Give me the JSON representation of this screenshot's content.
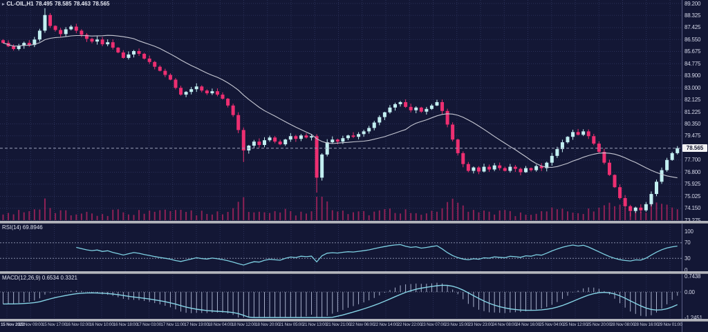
{
  "window": {
    "symbol": "CL-OIL,H1",
    "ohlc": {
      "open": "78.495",
      "high": "78.585",
      "low": "78.463",
      "close": "78.565"
    }
  },
  "indicators": {
    "rsi": {
      "label": "RSI(14)",
      "value": "69.8946"
    },
    "macd": {
      "label": "MACD(12,26,9)",
      "main_value": "0.6534",
      "signal_value": "0.3321"
    }
  },
  "colors": {
    "background": "#131735",
    "grid": "#2b3059",
    "bull": "#c2eff1",
    "bear": "#ed2f71",
    "ma_line": "#c7c9d4",
    "volume": "#8e2156",
    "rsi_line": "#7fd2e4",
    "rsi_levels": "#878da9",
    "macd_histogram": "#a9b1cc",
    "macd_signal": "#86d4e6",
    "separator": "#b3b5bd",
    "axis_text": "#d6d9ea",
    "current_line": "#9ba1bb",
    "current_price_bg": "#f2f2f4",
    "current_price_text": "#10132c"
  },
  "chart_data": {
    "type": "candlestick",
    "symbol": "CL-OIL",
    "timeframe": "H1",
    "title": "CL-OIL,H1 78.495 78.585 78.463 78.565",
    "price_ticks": [
      "89.200",
      "88.325",
      "87.425",
      "86.550",
      "85.675",
      "84.775",
      "83.900",
      "83.000",
      "82.125",
      "81.225",
      "80.350",
      "79.475",
      "77.700",
      "76.800",
      "75.925",
      "75.025",
      "74.150",
      "73.275"
    ],
    "price_range": [
      73.275,
      89.2
    ],
    "current_price": 78.565,
    "time_ticks": [
      "15 Nov 2022",
      "15 Nov 09:00",
      "15 Nov 17:00",
      "16 Nov 02:00",
      "16 Nov 10:00",
      "16 Nov 18:00",
      "17 Nov 03:00",
      "17 Nov 11:00",
      "17 Nov 19:00",
      "18 Nov 04:00",
      "18 Nov 12:00",
      "18 Nov 20:00",
      "21 Nov 05:00",
      "21 Nov 13:00",
      "21 Nov 21:00",
      "22 Nov 06:00",
      "22 Nov 14:00",
      "22 Nov 22:00",
      "23 Nov 07:00",
      "23 Nov 15:00",
      "23 Nov 23:00",
      "24 Nov 08:00",
      "24 Nov 16:00",
      "25 Nov 04:00",
      "25 Nov 12:00",
      "25 Nov 20:00",
      "28 Nov 08:00",
      "28 Nov 16:00",
      "29 Nov 01:00"
    ],
    "candles": {
      "open_first": 86.5,
      "closes": [
        86.3,
        86.05,
        85.85,
        86.1,
        86.3,
        86.15,
        86.55,
        87.2,
        88.35,
        87.55,
        87.25,
        86.95,
        87.3,
        87.5,
        87.2,
        86.9,
        86.6,
        86.4,
        86.55,
        86.2,
        86.35,
        85.95,
        85.6,
        85.2,
        85.45,
        85.7,
        85.5,
        85.15,
        84.9,
        84.55,
        84.25,
        83.95,
        83.6,
        83.0,
        82.5,
        82.7,
        82.9,
        83.1,
        82.8,
        82.6,
        82.75,
        82.5,
        82.2,
        81.7,
        81.0,
        79.9,
        78.4,
        78.75,
        79.05,
        78.8,
        79.15,
        79.35,
        79.05,
        78.85,
        79.2,
        79.45,
        79.25,
        79.5,
        79.35,
        79.45,
        76.4,
        78.1,
        79.0,
        79.2,
        79.05,
        79.3,
        79.5,
        79.4,
        79.6,
        79.8,
        80.05,
        80.45,
        80.85,
        81.2,
        81.55,
        81.8,
        81.95,
        81.6,
        81.35,
        81.55,
        81.25,
        81.45,
        81.7,
        81.95,
        81.3,
        80.3,
        79.2,
        78.2,
        77.4,
        76.9,
        77.15,
        76.85,
        77.2,
        77.0,
        77.3,
        77.1,
        76.9,
        77.2,
        77.05,
        76.8,
        77.1,
        76.95,
        77.25,
        77.1,
        77.5,
        78.0,
        78.5,
        79.0,
        79.4,
        79.75,
        79.55,
        79.8,
        79.45,
        78.9,
        78.3,
        77.5,
        76.6,
        75.7,
        74.9,
        74.3,
        73.95,
        74.2,
        74.0,
        74.45,
        75.2,
        76.1,
        76.95,
        77.7,
        78.2,
        78.565
      ],
      "wick_overrides": {
        "8": {
          "high": 88.85
        },
        "46": {
          "low": 77.55
        },
        "60": {
          "low": 75.3
        },
        "120": {
          "low": 73.55
        },
        "129": {
          "high": 78.72
        }
      }
    },
    "moving_average_period": 18,
    "rsi": {
      "period": 14,
      "value": 69.8946,
      "overbought": 70,
      "oversold": 30,
      "scale_ticks": [
        "100",
        "70",
        "30",
        "0"
      ],
      "scale": [
        0,
        100
      ]
    },
    "macd": {
      "fast": 12,
      "slow": 26,
      "signal": 9,
      "value": 0.6534,
      "signal_value": 0.3321,
      "scale_ticks": [
        "0.7438",
        "0.00",
        "-1.2451"
      ],
      "scale": [
        -1.2451,
        0.7438
      ]
    }
  }
}
